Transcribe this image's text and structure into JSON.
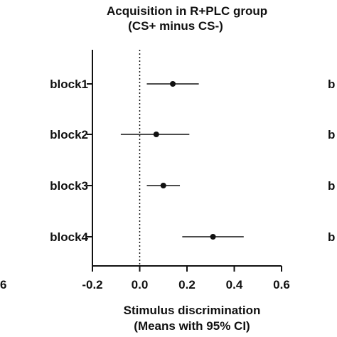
{
  "chart_data": {
    "type": "forest",
    "title": "Acquisition in R+PLC group",
    "subtitle": "(CS+ minus CS-)",
    "xlabel": "Stimulus discrimination",
    "xlabel2": "(Means with 95% CI)",
    "ylabel": "",
    "xlim": [
      -0.2,
      0.6
    ],
    "xticks": [
      -0.2,
      0.0,
      0.2,
      0.4,
      0.6
    ],
    "xtick_labels": [
      "-0.2",
      "0.0",
      "0.2",
      "0.4",
      "0.6"
    ],
    "reference_line": 0.0,
    "reference_line_style": "dotted",
    "grid": false,
    "categories": [
      "block1",
      "block2",
      "block3",
      "block4"
    ],
    "means": [
      0.14,
      0.07,
      0.1,
      0.31
    ],
    "ci_lower": [
      0.03,
      -0.08,
      0.03,
      0.18
    ],
    "ci_upper": [
      0.25,
      0.21,
      0.17,
      0.44
    ]
  },
  "partial_text": {
    "left_tick": "6",
    "right_labels": [
      "b",
      "b",
      "b",
      "b"
    ]
  },
  "colors": {
    "ink": "#111111",
    "background": "#ffffff"
  }
}
